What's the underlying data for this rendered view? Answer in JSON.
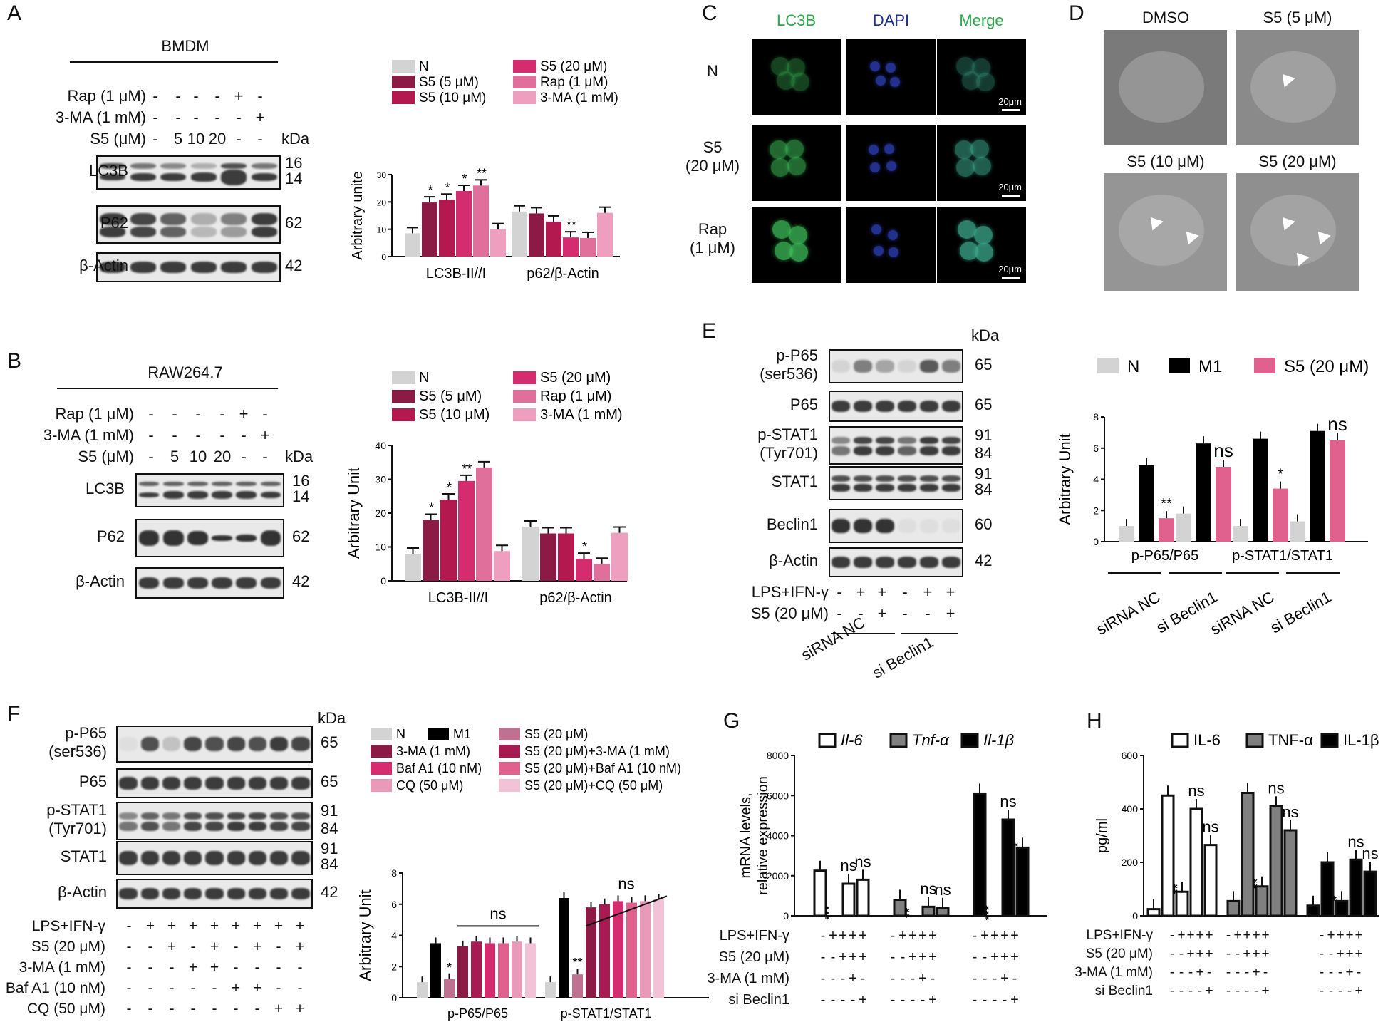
{
  "panels": {
    "A": {
      "letter": "A",
      "cell_line": "BMDM",
      "treat_rows": [
        {
          "label": "Rap (1 μM)",
          "signs": [
            "-",
            "-",
            "-",
            "-",
            "+",
            "-"
          ]
        },
        {
          "label": "3-MA (1 mM)",
          "signs": [
            "-",
            "-",
            "-",
            "-",
            "-",
            "+"
          ]
        },
        {
          "label": "S5 (μM)",
          "signs": [
            "-",
            "5",
            "10",
            "20",
            "-",
            "-"
          ]
        }
      ],
      "kda_label": "kDa",
      "blots": [
        {
          "label": "LC3B",
          "kda": [
            "16",
            "14"
          ]
        },
        {
          "label": "P62",
          "kda": [
            "62"
          ]
        },
        {
          "label": "β-Actin",
          "kda": [
            "42"
          ]
        }
      ]
    },
    "B": {
      "letter": "B",
      "cell_line": "RAW264.7",
      "treat_rows": [
        {
          "label": "Rap (1 μM)",
          "signs": [
            "-",
            "-",
            "-",
            "-",
            "+",
            "-"
          ]
        },
        {
          "label": "3-MA (1 mM)",
          "signs": [
            "-",
            "-",
            "-",
            "-",
            "-",
            "+"
          ]
        },
        {
          "label": "S5 (μM)",
          "signs": [
            "-",
            "5",
            "10",
            "20",
            "-",
            "-"
          ]
        }
      ],
      "kda_label": "kDa",
      "blots": [
        {
          "label": "LC3B",
          "kda": [
            "16",
            "14"
          ]
        },
        {
          "label": "P62",
          "kda": [
            "62"
          ]
        },
        {
          "label": "β-Actin",
          "kda": [
            "42"
          ]
        }
      ]
    },
    "C": {
      "letter": "C",
      "columns": [
        "LC3B",
        "DAPI",
        "Merge"
      ],
      "rows": [
        "N",
        "S5\n(20 μM)",
        "Rap\n(1 μM)"
      ],
      "scale": "20μm"
    },
    "D": {
      "letter": "D",
      "titles": [
        "DMSO",
        "S5 (5 μM)",
        "S5 (10 μM)",
        "S5 (20 μM)"
      ]
    },
    "E": {
      "letter": "E",
      "kda_label": "kDa",
      "blots": [
        {
          "label": "p-P65\n(ser536)",
          "kda": [
            "65"
          ]
        },
        {
          "label": "P65",
          "kda": [
            "65"
          ]
        },
        {
          "label": "p-STAT1\n(Tyr701)",
          "kda": [
            "91",
            "84"
          ]
        },
        {
          "label": "STAT1",
          "kda": [
            "91",
            "84"
          ]
        },
        {
          "label": "Beclin1",
          "kda": [
            "60"
          ]
        },
        {
          "label": "β-Actin",
          "kda": [
            "42"
          ]
        }
      ],
      "treat_rows": [
        {
          "label": "LPS+IFN-γ",
          "signs": [
            "-",
            "+",
            "+",
            "-",
            "+",
            "+"
          ]
        },
        {
          "label": "S5 (20 μM)",
          "signs": [
            "-",
            "-",
            "+",
            "-",
            "-",
            "+"
          ]
        }
      ],
      "groups": [
        "siRNA NC",
        "si Beclin1"
      ]
    },
    "F": {
      "letter": "F",
      "kda_label": "kDa",
      "blots": [
        {
          "label": "p-P65\n(ser536)",
          "kda": [
            "65"
          ]
        },
        {
          "label": "P65",
          "kda": [
            "65"
          ]
        },
        {
          "label": "p-STAT1\n(Tyr701)",
          "kda": [
            "91",
            "84"
          ]
        },
        {
          "label": "STAT1",
          "kda": [
            "91",
            "84"
          ]
        },
        {
          "label": "β-Actin",
          "kda": [
            "42"
          ]
        }
      ],
      "treat_rows": [
        {
          "label": "LPS+IFN-γ",
          "signs": [
            "-",
            "+",
            "+",
            "+",
            "+",
            "+",
            "+",
            "+",
            "+"
          ]
        },
        {
          "label": "S5 (20 μM)",
          "signs": [
            "-",
            "-",
            "+",
            "-",
            "+",
            "-",
            "+",
            "-",
            "+"
          ]
        },
        {
          "label": "3-MA (1 mM)",
          "signs": [
            "-",
            "-",
            "-",
            "+",
            "+",
            "-",
            "-",
            "-",
            "-"
          ]
        },
        {
          "label": "Baf A1 (10 nM)",
          "signs": [
            "-",
            "-",
            "-",
            "-",
            "-",
            "+",
            "+",
            "-",
            "-"
          ]
        },
        {
          "label": "CQ (50 μM)",
          "signs": [
            "-",
            "-",
            "-",
            "-",
            "-",
            "-",
            "-",
            "+",
            "+"
          ]
        }
      ]
    },
    "G": {
      "letter": "G",
      "treat_rows": [
        {
          "label": "LPS+IFN-γ",
          "signs": [
            "-",
            "+",
            "+",
            "+",
            "+"
          ]
        },
        {
          "label": "S5 (20 μM)",
          "signs": [
            "-",
            "-",
            "+",
            "+",
            "+"
          ]
        },
        {
          "label": "3-MA (1 mM)",
          "signs": [
            "-",
            "-",
            "-",
            "+",
            "-"
          ]
        },
        {
          "label": "si Beclin1",
          "signs": [
            "-",
            "-",
            "-",
            "-",
            "+"
          ]
        }
      ]
    },
    "H": {
      "letter": "H",
      "treat_rows": [
        {
          "label": "LPS+IFN-γ",
          "signs": [
            "-",
            "+",
            "+",
            "+",
            "+"
          ]
        },
        {
          "label": "S5 (20 μM)",
          "signs": [
            "-",
            "-",
            "+",
            "+",
            "+"
          ]
        },
        {
          "label": "3-MA (1 mM)",
          "signs": [
            "-",
            "-",
            "-",
            "+",
            "-"
          ]
        },
        {
          "label": "si Beclin1",
          "signs": [
            "-",
            "-",
            "-",
            "-",
            "+"
          ]
        }
      ]
    }
  },
  "chart_data": [
    {
      "id": "A",
      "type": "bar",
      "ylabel": "Arbitrary unite",
      "ylim": [
        0,
        30
      ],
      "yticks": [
        0,
        10,
        20,
        30
      ],
      "groups": [
        "LC3B-II//I",
        "p62/β-Actin"
      ],
      "series": [
        {
          "name": "N",
          "color": "#d3d3d3",
          "values": [
            8.5,
            16.5
          ]
        },
        {
          "name": "S5 (5 μM)",
          "color": "#8b1a45",
          "values": [
            19.8,
            15.8
          ]
        },
        {
          "name": "S5 (10 μM)",
          "color": "#b3184f",
          "values": [
            20.8,
            12.8
          ]
        },
        {
          "name": "S5 (20 μM)",
          "color": "#d42c6e",
          "values": [
            24.0,
            7.0
          ]
        },
        {
          "name": "Rap (1 μM)",
          "color": "#e0709b",
          "values": [
            26.0,
            6.8
          ]
        },
        {
          "name": "3-MA (1 mM)",
          "color": "#ee9fc0",
          "values": [
            10.0,
            16.0
          ]
        }
      ],
      "significance": [
        [
          "",
          "*",
          "*",
          "*",
          "**",
          ""
        ],
        [
          "",
          "",
          "",
          "**",
          "",
          ""
        ]
      ]
    },
    {
      "id": "B",
      "type": "bar",
      "ylabel": "Arbitrary Unit",
      "ylim": [
        0,
        40
      ],
      "yticks": [
        0,
        10,
        20,
        30,
        40
      ],
      "groups": [
        "LC3B-II//I",
        "p62/β-Actin"
      ],
      "series": [
        {
          "name": "N",
          "color": "#d3d3d3",
          "values": [
            8.0,
            16.0
          ]
        },
        {
          "name": "S5 (5 μM)",
          "color": "#8b1a45",
          "values": [
            18.0,
            14.0
          ]
        },
        {
          "name": "S5 (10 μM)",
          "color": "#b3184f",
          "values": [
            24.0,
            14.0
          ]
        },
        {
          "name": "S5 (20 μM)",
          "color": "#d42c6e",
          "values": [
            29.5,
            6.5
          ]
        },
        {
          "name": "Rap  (1 μM)",
          "color": "#e0709b",
          "values": [
            33.5,
            5.0
          ]
        },
        {
          "name": "3-MA (1 mM)",
          "color": "#ee9fc0",
          "values": [
            8.8,
            14.2
          ]
        }
      ],
      "significance": [
        [
          "",
          "*",
          "*",
          "**",
          "",
          ""
        ],
        [
          "",
          "",
          "",
          "*",
          "",
          ""
        ]
      ]
    },
    {
      "id": "E",
      "type": "bar",
      "ylabel": "Arbitrary Unit",
      "ylim": [
        0,
        8
      ],
      "yticks": [
        0,
        2,
        4,
        6,
        8
      ],
      "groups": [
        "siRNA NC",
        "si Beclin1",
        "siRNA NC",
        "si Beclin1"
      ],
      "group_captions": [
        "p-P65/P65",
        "p-STAT1/STAT1"
      ],
      "series": [
        {
          "name": "N",
          "color": "#d3d3d3",
          "values": [
            1.0,
            1.8,
            1.0,
            1.3
          ]
        },
        {
          "name": "M1",
          "color": "#000000",
          "values": [
            4.9,
            6.3,
            6.6,
            7.1
          ]
        },
        {
          "name": "S5 (20 μM)",
          "color": "#e0608e",
          "values": [
            1.5,
            4.8,
            3.4,
            6.5
          ]
        }
      ],
      "significance": [
        [
          "",
          "",
          "**"
        ],
        [
          "",
          "",
          "ns"
        ],
        [
          "",
          "",
          "*"
        ],
        [
          "",
          "",
          "ns"
        ]
      ]
    },
    {
      "id": "F",
      "type": "bar",
      "ylabel": "Arbitrary Unit",
      "ylim": [
        0,
        8
      ],
      "yticks": [
        0,
        2,
        4,
        6,
        8
      ],
      "groups": [
        "p-P65/P65",
        "p-STAT1/STAT1"
      ],
      "series": [
        {
          "name": "N",
          "color": "#d3d3d3",
          "values": [
            1.0,
            1.0
          ]
        },
        {
          "name": "M1",
          "color": "#000000",
          "values": [
            3.5,
            6.4
          ]
        },
        {
          "name": "S5 (20 μM)",
          "color": "#c07090",
          "values": [
            1.2,
            1.5
          ]
        },
        {
          "name": "3-MA (1 mM)",
          "color": "#8b1a45",
          "values": [
            3.3,
            5.8
          ]
        },
        {
          "name": "S5 (20 μM)+3-MA (1 mM)",
          "color": "#a81a52",
          "values": [
            3.6,
            6.0
          ]
        },
        {
          "name": "Baf A1 (10 nM)",
          "color": "#d42c6e",
          "values": [
            3.5,
            6.2
          ]
        },
        {
          "name": "S5 (20 μM)+Baf A1 (10 nM)",
          "color": "#e0608e",
          "values": [
            3.5,
            6.1
          ]
        },
        {
          "name": "CQ (50 μM)",
          "color": "#e89ab8",
          "values": [
            3.6,
            6.2
          ]
        },
        {
          "name": "S5 (20 μM)+CQ (50 μM)",
          "color": "#f2c3d6",
          "values": [
            3.5,
            6.3
          ]
        }
      ],
      "significance": [
        [
          "",
          "",
          "*",
          "",
          "",
          "",
          "",
          "",
          ""
        ],
        [
          "",
          "",
          "**",
          "",
          "",
          "",
          "",
          "",
          ""
        ]
      ],
      "ns_brackets": [
        "ns",
        "ns"
      ]
    },
    {
      "id": "G",
      "type": "bar",
      "ylabel": "mRNA levels,\nrelative expression",
      "ylim": [
        0,
        8000
      ],
      "yticks": [
        0,
        2000,
        4000,
        6000,
        8000
      ],
      "groups": [
        "Il-6",
        "Tnf-α",
        "Il-1β"
      ],
      "series": [
        {
          "name": "Il-6",
          "color": "#ffffff",
          "values": [
            0,
            2250,
            0,
            1600,
            1800
          ]
        },
        {
          "name": "Tnf-α",
          "color": "#808080",
          "values": [
            0,
            800,
            0,
            450,
            400
          ]
        },
        {
          "name": "Il-1β",
          "color": "#000000",
          "values": [
            0,
            6100,
            0,
            4800,
            3400
          ]
        }
      ],
      "significance": [
        [
          "",
          "",
          "***",
          "ns",
          "ns"
        ],
        [
          "",
          "",
          "**",
          "ns",
          "ns"
        ],
        [
          "",
          "",
          "***",
          "ns",
          "*"
        ]
      ]
    },
    {
      "id": "H",
      "type": "bar",
      "ylabel": "pg/ml",
      "ylim": [
        0,
        600
      ],
      "yticks": [
        0,
        200,
        400,
        600
      ],
      "groups": [
        "IL-6",
        "TNF-α",
        "IL-1β"
      ],
      "series": [
        {
          "name": "IL-6",
          "color": "#ffffff",
          "values": [
            25,
            450,
            90,
            400,
            265
          ]
        },
        {
          "name": "TNF-α",
          "color": "#808080",
          "values": [
            55,
            460,
            110,
            410,
            320
          ]
        },
        {
          "name": "IL-1β",
          "color": "#000000",
          "values": [
            38,
            200,
            55,
            210,
            165
          ]
        }
      ],
      "significance": [
        [
          "",
          "",
          "**",
          "ns",
          "ns"
        ],
        [
          "",
          "",
          "**",
          "ns",
          "ns"
        ],
        [
          "",
          "",
          "*",
          "ns",
          "ns"
        ]
      ]
    }
  ]
}
